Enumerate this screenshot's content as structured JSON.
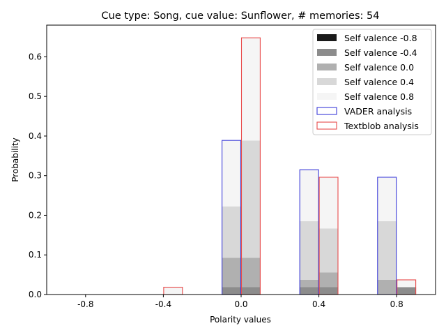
{
  "chart_data": {
    "type": "bar",
    "title": "Cue type: Song, cue value: Sunflower, # memories: 54",
    "xlabel": "Polarity values",
    "ylabel": "Probability",
    "categories": [
      "-0.8",
      "-0.4",
      "0.0",
      "0.4",
      "0.8"
    ],
    "x_ticks": [
      -0.8,
      -0.4,
      0.0,
      0.4,
      0.8
    ],
    "xlim": [
      -1.0,
      1.0
    ],
    "ylim": [
      0,
      0.68
    ],
    "y_ticks": [
      "0.0",
      "0.1",
      "0.2",
      "0.3",
      "0.4",
      "0.5",
      "0.6"
    ],
    "y_tick_values": [
      0.0,
      0.1,
      0.2,
      0.3,
      0.4,
      0.5,
      0.6
    ],
    "legend_position": "upper right",
    "stack_series": [
      {
        "name": "Self valence -0.8",
        "color": "#1a1a1a",
        "vader": [
          0,
          0,
          0.0,
          0.0,
          0.0
        ],
        "textblob": [
          0,
          0,
          0.0,
          0.0,
          0.0
        ]
      },
      {
        "name": "Self valence -0.4",
        "color": "#8c8c8c",
        "vader": [
          0,
          0,
          0.0185,
          0.0185,
          0.0
        ],
        "textblob": [
          0,
          0,
          0.0185,
          0.0185,
          0.0185
        ]
      },
      {
        "name": "Self valence 0.0",
        "color": "#b0b0b0",
        "vader": [
          0,
          0,
          0.074,
          0.0185,
          0.037
        ],
        "textblob": [
          0,
          0,
          0.074,
          0.037,
          0.0
        ]
      },
      {
        "name": "Self valence 0.4",
        "color": "#d8d8d8",
        "vader": [
          0,
          0,
          0.13,
          0.148,
          0.148
        ],
        "textblob": [
          0,
          0,
          0.296,
          0.111,
          0.0
        ]
      },
      {
        "name": "Self valence 0.8",
        "color": "#f5f5f5",
        "vader": [
          0,
          0,
          0.167,
          0.13,
          0.111
        ],
        "textblob": [
          0,
          0.0185,
          0.259,
          0.13,
          0.0185
        ]
      }
    ],
    "outline_series": [
      {
        "name": "VADER analysis",
        "color": "#3b3bd9",
        "values": [
          0,
          0,
          0.389,
          0.315,
          0.296
        ]
      },
      {
        "name": "Textblob analysis",
        "color": "#e84a4a",
        "values": [
          0,
          0.0185,
          0.648,
          0.296,
          0.037
        ]
      }
    ]
  }
}
